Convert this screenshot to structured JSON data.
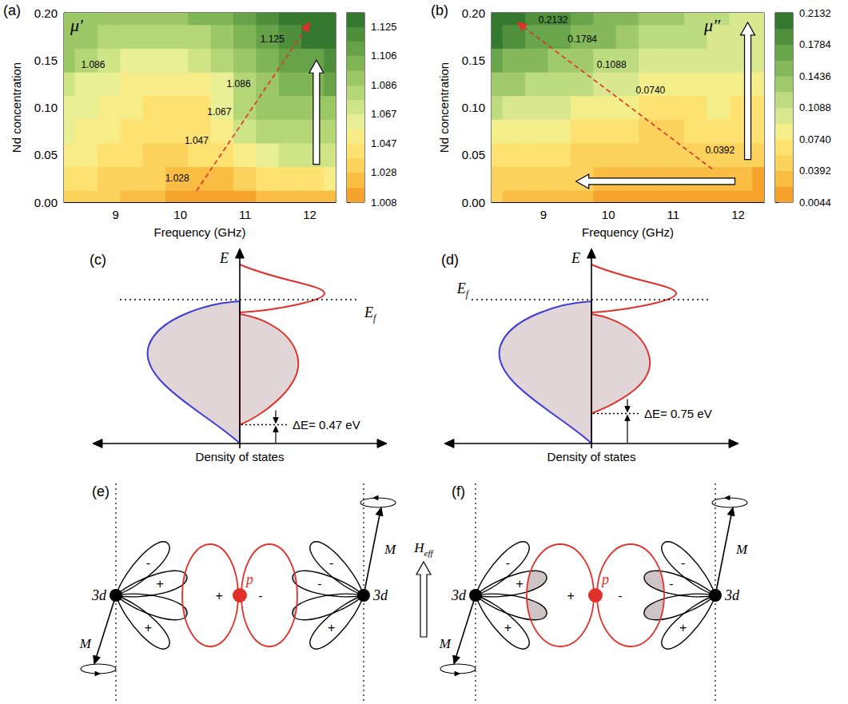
{
  "chart_data": [
    {
      "type": "contour",
      "panel": "(a)",
      "symbol": "μ′",
      "x_label": "Frequency (GHz)",
      "y_label": "Nd concentration",
      "x": [
        8.2,
        8.55,
        8.9,
        9.25,
        9.6,
        9.95,
        10.3,
        10.65,
        11.0,
        11.35,
        11.7,
        12.05,
        12.4
      ],
      "y": [
        0,
        0.025,
        0.05,
        0.075,
        0.1,
        0.125,
        0.15,
        0.175,
        0.2
      ],
      "values": [
        [
          1.035,
          1.032,
          1.028,
          1.024,
          1.02,
          1.015,
          1.012,
          1.012,
          1.015,
          1.018,
          1.02,
          1.022,
          1.025
        ],
        [
          1.042,
          1.04,
          1.036,
          1.032,
          1.028,
          1.024,
          1.022,
          1.026,
          1.032,
          1.038,
          1.042,
          1.045,
          1.047
        ],
        [
          1.05,
          1.048,
          1.044,
          1.04,
          1.037,
          1.036,
          1.038,
          1.046,
          1.056,
          1.064,
          1.068,
          1.07,
          1.072
        ],
        [
          1.058,
          1.055,
          1.05,
          1.045,
          1.042,
          1.041,
          1.044,
          1.056,
          1.072,
          1.08,
          1.082,
          1.084,
          1.085
        ],
        [
          1.064,
          1.06,
          1.055,
          1.048,
          1.044,
          1.043,
          1.046,
          1.06,
          1.08,
          1.088,
          1.092,
          1.094,
          1.095
        ],
        [
          1.072,
          1.066,
          1.06,
          1.054,
          1.05,
          1.05,
          1.054,
          1.066,
          1.084,
          1.094,
          1.1,
          1.104,
          1.106
        ],
        [
          1.088,
          1.082,
          1.074,
          1.066,
          1.062,
          1.063,
          1.068,
          1.078,
          1.09,
          1.1,
          1.108,
          1.114,
          1.118
        ],
        [
          1.094,
          1.09,
          1.084,
          1.08,
          1.078,
          1.08,
          1.085,
          1.092,
          1.102,
          1.112,
          1.12,
          1.126,
          1.13
        ],
        [
          1.092,
          1.094,
          1.092,
          1.09,
          1.09,
          1.092,
          1.097,
          1.104,
          1.112,
          1.12,
          1.127,
          1.132,
          1.134
        ]
      ],
      "xlim": [
        8.2,
        12.4
      ],
      "xticks": [
        9,
        10,
        11,
        12
      ],
      "ylim": [
        0,
        0.2
      ],
      "yticks": [
        {
          "value": 0,
          "label": "0.00"
        },
        0.05,
        {
          "value": 0.1,
          "label": "0.10"
        },
        0.15,
        {
          "value": 0.2,
          "label": "0.20"
        }
      ],
      "grid": false,
      "colorbar": {
        "lim": [
          1.008,
          1.1345
        ],
        "ticks": [
          1.008,
          1.028,
          1.047,
          1.067,
          1.086,
          1.106,
          1.125
        ],
        "levels": [
          1.008,
          1.0178,
          1.028,
          1.0375,
          1.047,
          1.057,
          1.067,
          1.0765,
          1.086,
          1.096,
          1.106,
          1.1155,
          1.125,
          1.1345
        ],
        "colors": [
          "#f5a32d",
          "#f9bd43",
          "#fbd25b",
          "#fde271",
          "#f7ec87",
          "#e8ef94",
          "#cfe487",
          "#b5d677",
          "#9bc767",
          "#80b556",
          "#67a248",
          "#4f8f3c",
          "#357930"
        ]
      },
      "annotations": [
        {
          "text": "1.086",
          "x": 8.65,
          "y": 0.145
        },
        {
          "text": "1.125",
          "x": 11.42,
          "y": 0.172
        },
        {
          "text": "1.086",
          "x": 10.9,
          "y": 0.125
        },
        {
          "text": "1.067",
          "x": 10.6,
          "y": 0.095
        },
        {
          "text": "1.047",
          "x": 10.25,
          "y": 0.065
        },
        {
          "text": "1.028",
          "x": 9.95,
          "y": 0.025
        }
      ]
    },
    {
      "type": "contour",
      "panel": "(b)",
      "symbol": "μ″",
      "x_label": "Frequency (GHz)",
      "y_label": "Nd concentration",
      "x": [
        8.2,
        8.55,
        8.9,
        9.25,
        9.6,
        9.95,
        10.3,
        10.65,
        11.0,
        11.35,
        11.7,
        12.05,
        12.4
      ],
      "y": [
        0,
        0.025,
        0.05,
        0.075,
        0.1,
        0.125,
        0.15,
        0.175,
        0.2
      ],
      "values": [
        [
          0.04,
          0.036,
          0.032,
          0.028,
          0.024,
          0.02,
          0.018,
          0.016,
          0.014,
          0.012,
          0.01,
          0.008,
          0.006
        ],
        [
          0.056,
          0.052,
          0.048,
          0.044,
          0.04,
          0.036,
          0.032,
          0.028,
          0.03,
          0.034,
          0.03,
          0.022,
          0.018
        ],
        [
          0.072,
          0.068,
          0.064,
          0.06,
          0.056,
          0.052,
          0.046,
          0.04,
          0.042,
          0.05,
          0.052,
          0.048,
          0.044
        ],
        [
          0.088,
          0.084,
          0.08,
          0.076,
          0.072,
          0.068,
          0.06,
          0.05,
          0.048,
          0.058,
          0.064,
          0.062,
          0.06
        ],
        [
          0.11,
          0.104,
          0.098,
          0.094,
          0.09,
          0.086,
          0.078,
          0.068,
          0.064,
          0.07,
          0.074,
          0.072,
          0.07
        ],
        [
          0.14,
          0.13,
          0.122,
          0.116,
          0.11,
          0.104,
          0.096,
          0.088,
          0.084,
          0.086,
          0.086,
          0.084,
          0.082
        ],
        [
          0.17,
          0.16,
          0.15,
          0.14,
          0.132,
          0.124,
          0.116,
          0.108,
          0.102,
          0.1,
          0.098,
          0.096,
          0.094
        ],
        [
          0.196,
          0.186,
          0.176,
          0.164,
          0.154,
          0.144,
          0.134,
          0.126,
          0.118,
          0.112,
          0.108,
          0.104,
          0.1
        ],
        [
          0.212,
          0.204,
          0.194,
          0.182,
          0.17,
          0.158,
          0.148,
          0.138,
          0.128,
          0.12,
          0.114,
          0.108,
          0.104
        ]
      ],
      "xlim": [
        8.2,
        12.4
      ],
      "xticks": [
        9,
        10,
        11,
        12
      ],
      "ylim": [
        0,
        0.2
      ],
      "yticks": [
        {
          "value": 0,
          "label": "0.00"
        },
        0.05,
        {
          "value": 0.1,
          "label": "0.10"
        },
        0.15,
        {
          "value": 0.2,
          "label": "0.20"
        }
      ],
      "grid": false,
      "colorbar": {
        "lim": [
          0.0044,
          0.2132
        ],
        "ticks": [
          0.0044,
          0.0392,
          {
            "value": 0.074,
            "label": "0.0740"
          },
          0.1088,
          0.1436,
          0.1784,
          0.2132
        ],
        "levels": [
          0.0044,
          0.0218,
          0.0392,
          0.0566,
          0.074,
          0.0914,
          0.1088,
          0.1262,
          0.1436,
          0.161,
          0.1784,
          0.1958,
          0.2132
        ],
        "colors": [
          "#f5a32d",
          "#f9bd43",
          "#fbd25b",
          "#fde271",
          "#f4ee8a",
          "#d9e88f",
          "#bddb7f",
          "#a0ca6c",
          "#84b85a",
          "#69a54a",
          "#50903d",
          "#357930"
        ]
      },
      "annotations": [
        {
          "text": "0.2132",
          "x": 9.15,
          "y": 0.192
        },
        {
          "text": "0.1784",
          "x": 9.6,
          "y": 0.172
        },
        {
          "text": "0.1088",
          "x": 10.05,
          "y": 0.145
        },
        {
          "text": "0.0740",
          "x": 10.65,
          "y": 0.118
        },
        {
          "text": "0.0392",
          "x": 11.72,
          "y": 0.055
        }
      ]
    }
  ],
  "diagrams": {
    "dos": [
      {
        "panel": "(c)",
        "axis_label": "E",
        "fermi": {
          "base": "E",
          "sub": "f"
        },
        "delta_e": 0.47,
        "delta_e_label": "ΔE= 0.47 eV",
        "x_label": "Density of states"
      },
      {
        "panel": "(d)",
        "axis_label": "E",
        "fermi": {
          "base": "E",
          "sub": "f"
        },
        "delta_e": 0.75,
        "delta_e_label": "ΔE= 0.75 eV",
        "x_label": "Density of states"
      }
    ],
    "orbitals": [
      {
        "panel": "(e)",
        "d_label": "3d",
        "p_label": "p",
        "moment_label": "M",
        "left_signs": [
          "-",
          "+",
          "+"
        ],
        "right_signs": [
          "-",
          "-",
          "+"
        ],
        "p_signs": [
          "+",
          "-"
        ]
      },
      {
        "panel": "(f)",
        "d_label": "3d",
        "p_label": "p",
        "moment_label": "M",
        "left_signs": [
          "-",
          "+",
          "+"
        ],
        "right_signs": [
          "-",
          "-",
          "+"
        ],
        "p_signs": [
          "+",
          "-"
        ]
      }
    ],
    "field": {
      "base": "H",
      "sub": "eff"
    }
  }
}
